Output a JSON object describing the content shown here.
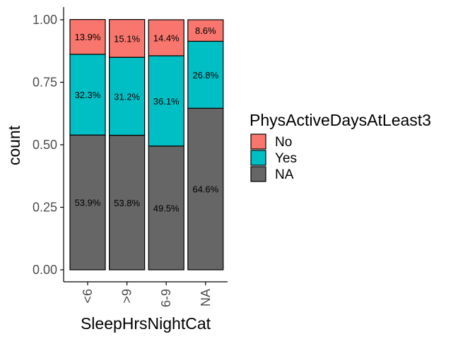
{
  "chart_data": {
    "type": "bar",
    "stacked": true,
    "position": "fill",
    "xlabel": "SleepHrsNightCat",
    "ylabel": "count",
    "ylim": [
      0,
      1
    ],
    "yticks": [
      "0.00",
      "0.25",
      "0.50",
      "0.75",
      "1.00"
    ],
    "categories": [
      "<6",
      ">9",
      "6-9",
      "NA"
    ],
    "legend": {
      "title": "PhysActiveDaysAtLeast3",
      "placement": "right",
      "entries": [
        "No",
        "Yes",
        "NA"
      ]
    },
    "series": [
      {
        "name": "No",
        "color": "#F8766D",
        "values": [
          0.139,
          0.151,
          0.144,
          0.086
        ],
        "labels": [
          "13.9%",
          "15.1%",
          "14.4%",
          "8.6%"
        ]
      },
      {
        "name": "Yes",
        "color": "#00BFC4",
        "values": [
          0.323,
          0.312,
          0.361,
          0.268
        ],
        "labels": [
          "32.3%",
          "31.2%",
          "36.1%",
          "26.8%"
        ]
      },
      {
        "name": "NA",
        "color": "#666666",
        "values": [
          0.539,
          0.538,
          0.495,
          0.646
        ],
        "labels": [
          "53.9%",
          "53.8%",
          "49.5%",
          "64.6%"
        ]
      }
    ]
  }
}
